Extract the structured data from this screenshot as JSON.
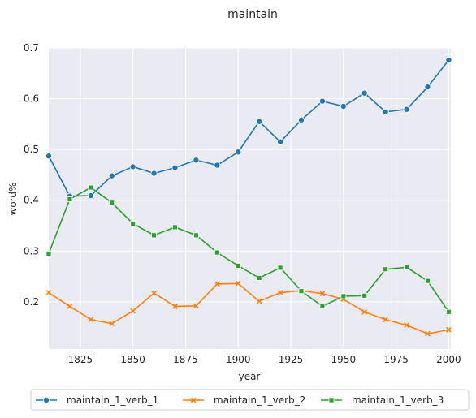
{
  "chart_data": {
    "type": "line",
    "title": "maintain",
    "xlabel": "year",
    "ylabel": "word%",
    "xlim": [
      1810,
      2001
    ],
    "ylim": [
      0.107,
      0.7
    ],
    "xticks": [
      1825,
      1850,
      1875,
      1900,
      1925,
      1950,
      1975,
      2000
    ],
    "yticks": [
      0.2,
      0.3,
      0.4,
      0.5,
      0.6,
      0.7
    ],
    "ytick_labels": [
      "0.2",
      "0.3",
      "0.4",
      "0.5",
      "0.6",
      "0.7"
    ],
    "grid": true,
    "legend_position": "bottom",
    "x": [
      1810,
      1820,
      1830,
      1840,
      1850,
      1860,
      1870,
      1880,
      1890,
      1900,
      1910,
      1920,
      1930,
      1940,
      1950,
      1960,
      1970,
      1980,
      1990,
      2000
    ],
    "series": [
      {
        "name": "maintain_1_verb_1",
        "color": "#1f77b4",
        "marker": "circle",
        "values": [
          0.487,
          0.408,
          0.409,
          0.448,
          0.466,
          0.453,
          0.464,
          0.479,
          0.469,
          0.495,
          0.555,
          0.515,
          0.558,
          0.595,
          0.585,
          0.611,
          0.574,
          0.579,
          0.623,
          0.676
        ]
      },
      {
        "name": "maintain_1_verb_2",
        "color": "#ff7f0e",
        "marker": "x",
        "values": [
          0.218,
          0.191,
          0.165,
          0.157,
          0.182,
          0.217,
          0.191,
          0.192,
          0.235,
          0.236,
          0.201,
          0.218,
          0.222,
          0.216,
          0.205,
          0.18,
          0.165,
          0.154,
          0.137,
          0.145
        ]
      },
      {
        "name": "maintain_1_verb_3",
        "color": "#2ca02c",
        "marker": "square",
        "values": [
          0.295,
          0.402,
          0.425,
          0.395,
          0.354,
          0.331,
          0.347,
          0.331,
          0.297,
          0.271,
          0.247,
          0.267,
          0.221,
          0.191,
          0.211,
          0.212,
          0.264,
          0.268,
          0.241,
          0.18
        ]
      }
    ]
  }
}
